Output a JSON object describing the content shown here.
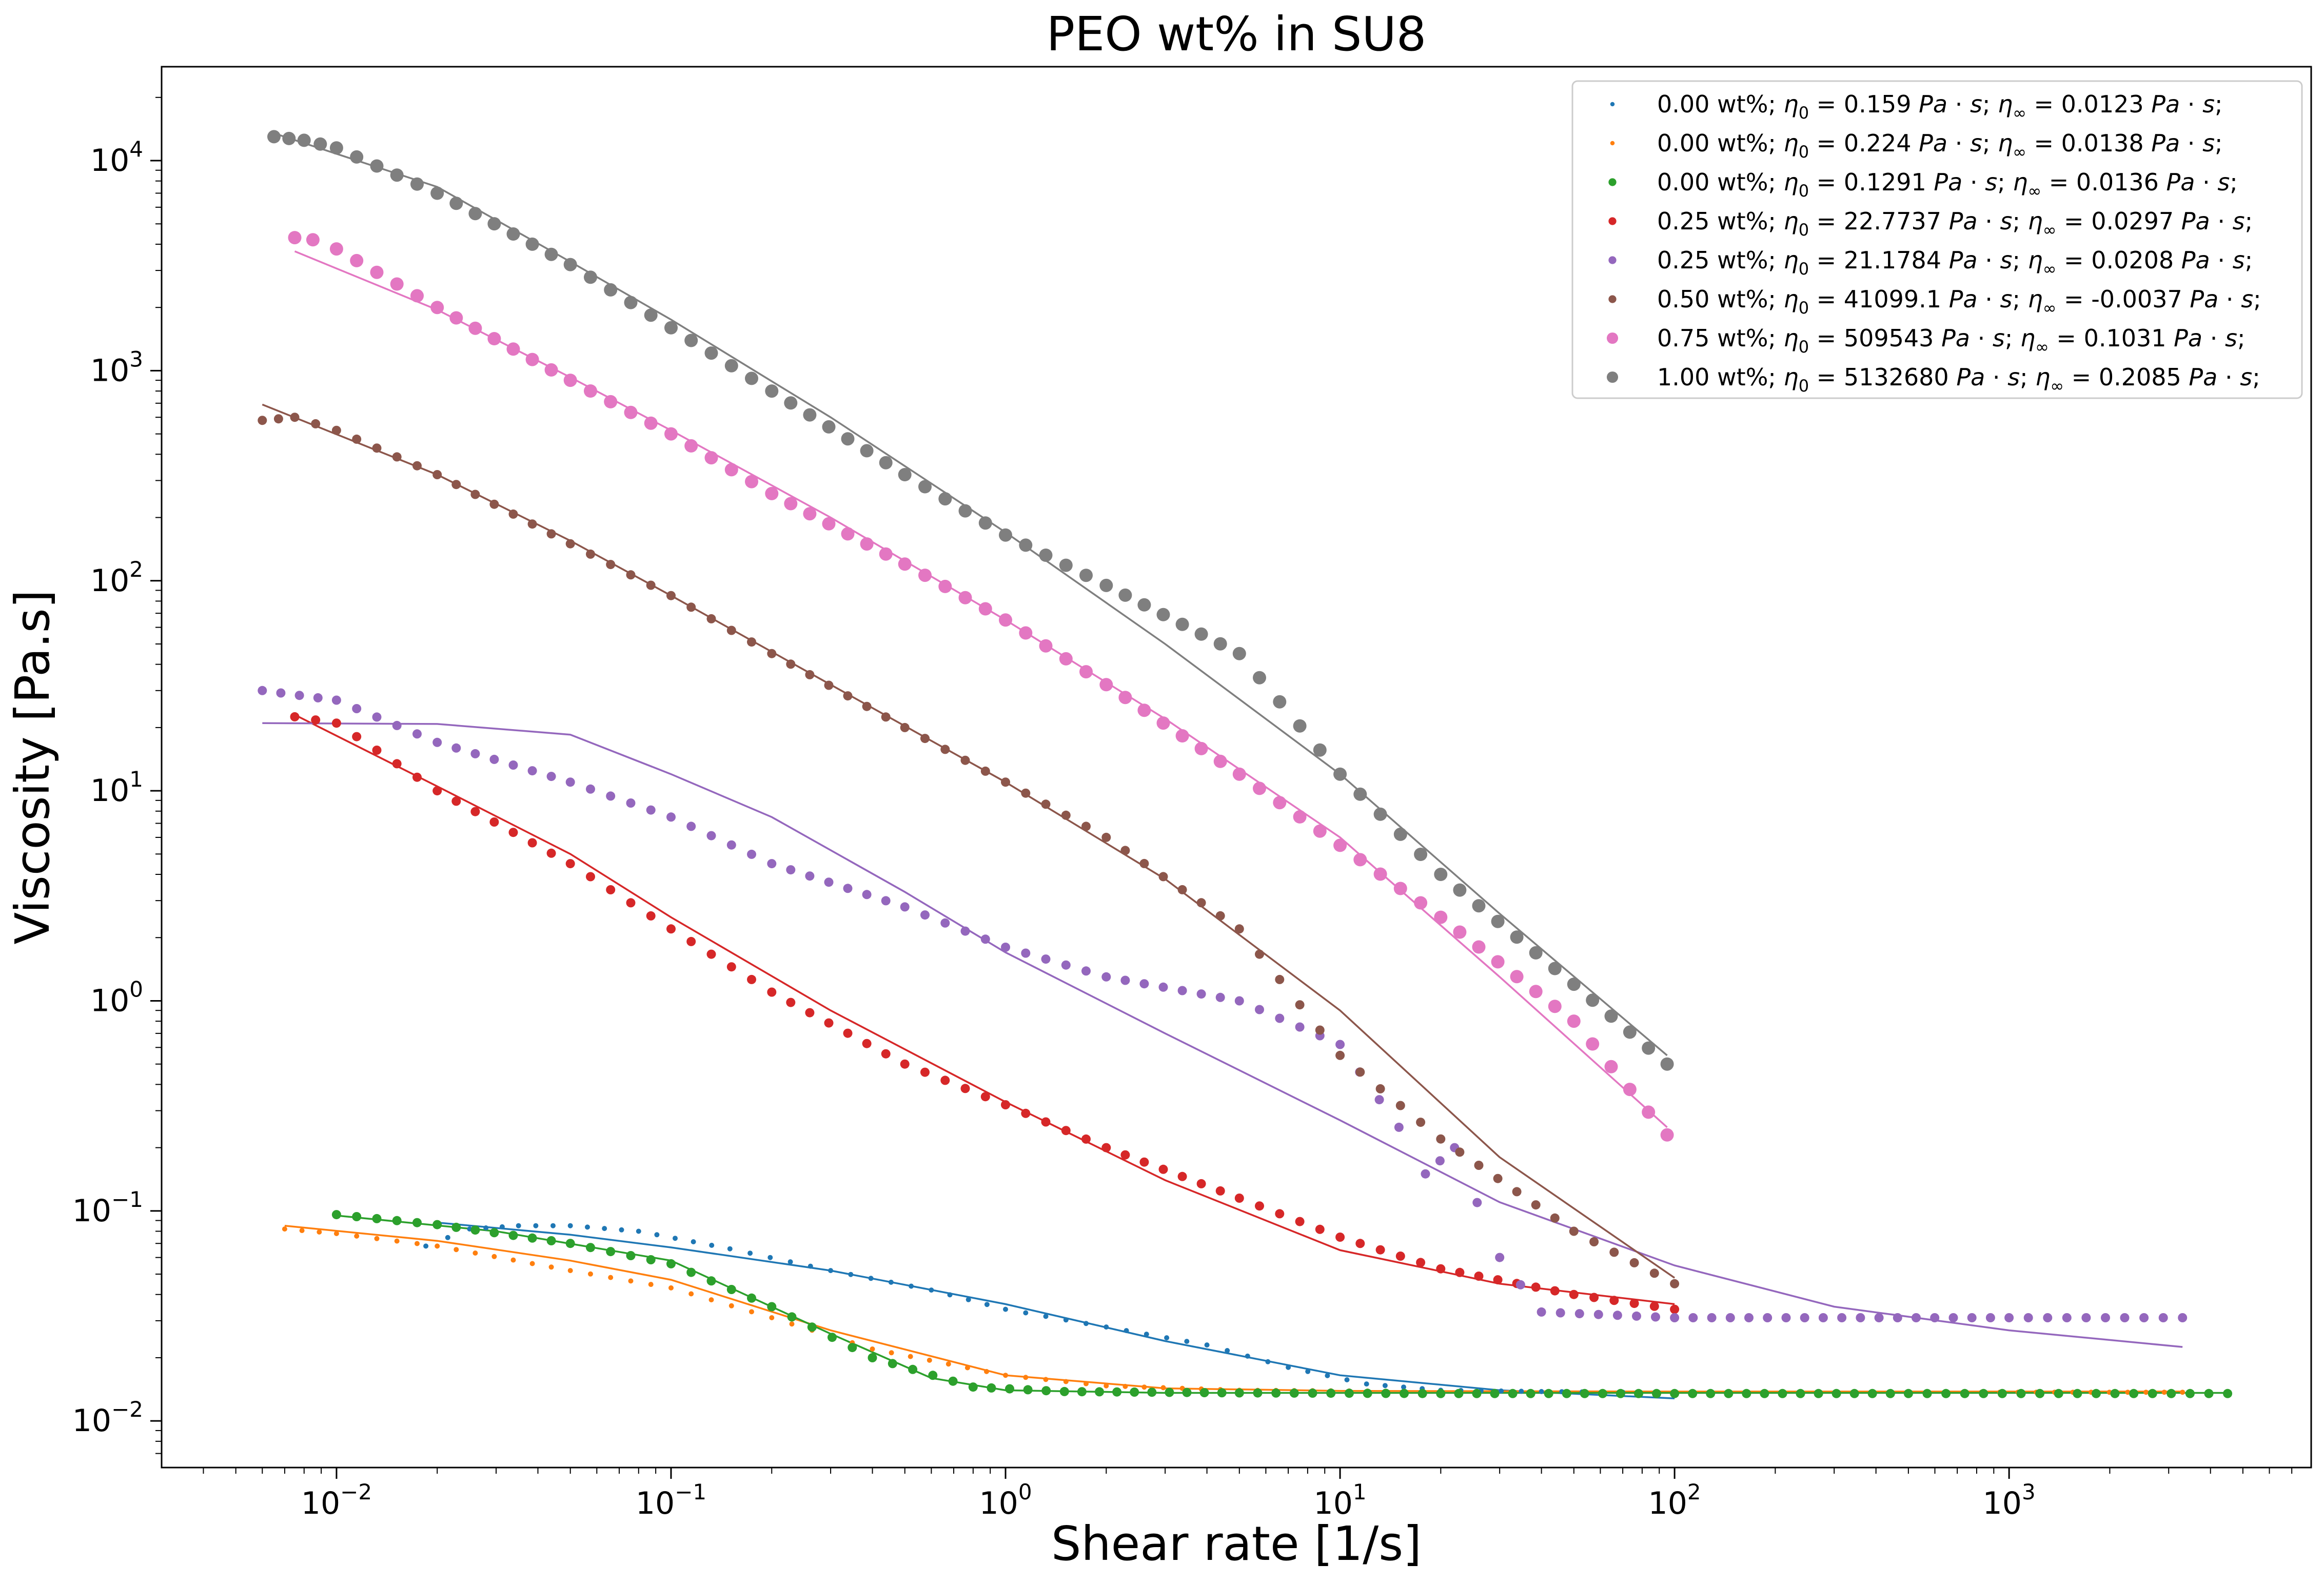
{
  "chart_data": {
    "type": "scatter",
    "title": "PEO wt% in SU8",
    "xlabel": "Shear rate [1/s]",
    "ylabel": "Viscosity [Pa.s]",
    "x_scale": "log",
    "y_scale": "log",
    "xlim": [
      0.003,
      8000
    ],
    "ylim": [
      0.006,
      28000
    ],
    "grid": false,
    "legend_position": "top-right",
    "x_ticks": [
      {
        "value": 0.01,
        "base": "10",
        "exp": "−2"
      },
      {
        "value": 0.1,
        "base": "10",
        "exp": "−1"
      },
      {
        "value": 1,
        "base": "10",
        "exp": "0"
      },
      {
        "value": 10,
        "base": "10",
        "exp": "1"
      },
      {
        "value": 100,
        "base": "10",
        "exp": "2"
      },
      {
        "value": 1000,
        "base": "10",
        "exp": "3"
      }
    ],
    "y_ticks": [
      {
        "value": 0.01,
        "base": "10",
        "exp": "−2"
      },
      {
        "value": 0.1,
        "base": "10",
        "exp": "−1"
      },
      {
        "value": 1,
        "base": "10",
        "exp": "0"
      },
      {
        "value": 10,
        "base": "10",
        "exp": "1"
      },
      {
        "value": 100,
        "base": "10",
        "exp": "2"
      },
      {
        "value": 1000,
        "base": "10",
        "exp": "3"
      },
      {
        "value": 10000,
        "base": "10",
        "exp": "4"
      }
    ],
    "series": [
      {
        "name": "0.00 wt%; η0 = 0.159 Pa·s; η∞ = 0.0123 Pa·s;",
        "label": {
          "wt": "0.00 wt%;",
          "eta0": "0.159",
          "etainf": "0.0123"
        },
        "color": "#1f77b4",
        "marker": "small",
        "points": [
          [
            0.0185,
            0.068
          ],
          [
            0.025,
            0.082
          ],
          [
            0.035,
            0.085
          ],
          [
            0.05,
            0.085
          ],
          [
            0.08,
            0.08
          ],
          [
            0.15,
            0.066
          ],
          [
            0.3,
            0.052
          ],
          [
            0.6,
            0.042
          ],
          [
            1.0,
            0.034
          ],
          [
            2.0,
            0.028
          ],
          [
            4.0,
            0.023
          ],
          [
            7.0,
            0.018
          ],
          [
            12.0,
            0.015
          ],
          [
            20.0,
            0.014
          ],
          [
            40.0,
            0.0138
          ],
          [
            70.0,
            0.0137
          ],
          [
            100.0,
            0.0137
          ]
        ],
        "fit": [
          [
            0.02,
            0.088
          ],
          [
            0.05,
            0.077
          ],
          [
            0.1,
            0.067
          ],
          [
            0.3,
            0.052
          ],
          [
            1.0,
            0.036
          ],
          [
            3.0,
            0.024
          ],
          [
            10.0,
            0.0165
          ],
          [
            30.0,
            0.014
          ],
          [
            100.0,
            0.0128
          ]
        ]
      },
      {
        "name": "0.00 wt%; η0 = 0.224 Pa·s; η∞ = 0.0138 Pa·s;",
        "label": {
          "wt": "0.00 wt%;",
          "eta0": "0.224",
          "etainf": "0.0138"
        },
        "color": "#ff7f0e",
        "marker": "small",
        "points": [
          [
            0.007,
            0.082
          ],
          [
            0.01,
            0.078
          ],
          [
            0.02,
            0.068
          ],
          [
            0.05,
            0.052
          ],
          [
            0.1,
            0.043
          ],
          [
            0.2,
            0.031
          ],
          [
            0.4,
            0.022
          ],
          [
            1.0,
            0.0165
          ],
          [
            2.0,
            0.0147
          ],
          [
            5.0,
            0.014
          ],
          [
            20.0,
            0.0138
          ],
          [
            100.0,
            0.0137
          ],
          [
            500.0,
            0.0137
          ],
          [
            3300.0,
            0.0137
          ]
        ],
        "fit": [
          [
            0.007,
            0.085
          ],
          [
            0.02,
            0.072
          ],
          [
            0.05,
            0.058
          ],
          [
            0.1,
            0.047
          ],
          [
            0.3,
            0.027
          ],
          [
            1.0,
            0.0165
          ],
          [
            3.0,
            0.0143
          ],
          [
            10.0,
            0.0139
          ],
          [
            100.0,
            0.0138
          ],
          [
            3300.0,
            0.0138
          ]
        ]
      },
      {
        "name": "0.00 wt%; η0 = 0.1291 Pa·s; η∞ = 0.0136 Pa·s;",
        "label": {
          "wt": "0.00 wt%;",
          "eta0": "0.1291",
          "etainf": "0.0136"
        },
        "color": "#2ca02c",
        "marker": "medium",
        "points": [
          [
            0.01,
            0.096
          ],
          [
            0.02,
            0.086
          ],
          [
            0.05,
            0.07
          ],
          [
            0.1,
            0.056
          ],
          [
            0.2,
            0.035
          ],
          [
            0.4,
            0.02
          ],
          [
            0.8,
            0.0145
          ],
          [
            1.5,
            0.0138
          ],
          [
            5.0,
            0.0136
          ],
          [
            20.0,
            0.0135
          ],
          [
            100.0,
            0.0135
          ],
          [
            500.0,
            0.0135
          ],
          [
            4500.0,
            0.0135
          ]
        ],
        "fit": [
          [
            0.01,
            0.095
          ],
          [
            0.03,
            0.08
          ],
          [
            0.1,
            0.058
          ],
          [
            0.3,
            0.026
          ],
          [
            0.6,
            0.016
          ],
          [
            1.0,
            0.014
          ],
          [
            3.0,
            0.0136
          ],
          [
            100.0,
            0.0136
          ],
          [
            4500.0,
            0.0136
          ]
        ]
      },
      {
        "name": "0.25 wt%; η0 = 22.7737 Pa·s; η∞ = 0.0297 Pa·s;",
        "label": {
          "wt": "0.25 wt%;",
          "eta0": "22.7737",
          "etainf": "0.0297"
        },
        "color": "#d62728",
        "marker": "medium",
        "points": [
          [
            0.0075,
            22.5
          ],
          [
            0.01,
            21.0
          ],
          [
            0.02,
            10.0
          ],
          [
            0.05,
            4.5
          ],
          [
            0.1,
            2.2
          ],
          [
            0.2,
            1.1
          ],
          [
            0.5,
            0.5
          ],
          [
            1.0,
            0.32
          ],
          [
            2.0,
            0.2
          ],
          [
            5.0,
            0.115
          ],
          [
            10.0,
            0.075
          ],
          [
            20.0,
            0.053
          ],
          [
            50.0,
            0.04
          ],
          [
            100.0,
            0.034
          ]
        ],
        "fit": [
          [
            0.0075,
            23.0
          ],
          [
            0.02,
            10.5
          ],
          [
            0.05,
            5.0
          ],
          [
            0.1,
            2.5
          ],
          [
            0.3,
            0.9
          ],
          [
            1.0,
            0.33
          ],
          [
            3.0,
            0.14
          ],
          [
            10.0,
            0.065
          ],
          [
            30.0,
            0.045
          ],
          [
            100.0,
            0.036
          ]
        ]
      },
      {
        "name": "0.25 wt%; η0 = 21.1784 Pa·s; η∞ = 0.0208 Pa·s;",
        "label": {
          "wt": "0.25 wt%;",
          "eta0": "21.1784",
          "etainf": "0.0208"
        },
        "color": "#9467bd",
        "marker": "medium",
        "points": [
          [
            0.006,
            30.0
          ],
          [
            0.01,
            27.0
          ],
          [
            0.02,
            17.0
          ],
          [
            0.05,
            11.0
          ],
          [
            0.1,
            7.5
          ],
          [
            0.2,
            4.5
          ],
          [
            0.5,
            2.8
          ],
          [
            1.0,
            1.8
          ],
          [
            2.0,
            1.3
          ],
          [
            5.0,
            1.0
          ],
          [
            10.0,
            0.62
          ],
          [
            15.0,
            0.25
          ],
          [
            18.0,
            0.15
          ],
          [
            22.0,
            0.2
          ],
          [
            30.0,
            0.06
          ],
          [
            40.0,
            0.033
          ],
          [
            100.0,
            0.031
          ],
          [
            1000.0,
            0.031
          ],
          [
            3300.0,
            0.031
          ]
        ],
        "fit": [
          [
            0.006,
            21.0
          ],
          [
            0.02,
            20.8
          ],
          [
            0.05,
            18.5
          ],
          [
            0.1,
            12.0
          ],
          [
            0.2,
            7.5
          ],
          [
            0.5,
            3.3
          ],
          [
            1.0,
            1.7
          ],
          [
            3.0,
            0.7
          ],
          [
            10.0,
            0.27
          ],
          [
            30.0,
            0.11
          ],
          [
            100.0,
            0.055
          ],
          [
            300.0,
            0.035
          ],
          [
            1000.0,
            0.027
          ],
          [
            3300.0,
            0.0225
          ]
        ]
      },
      {
        "name": "0.50 wt%; η0 = 41099.1 Pa·s; η∞ = -0.0037 Pa·s;",
        "label": {
          "wt": "0.50 wt%;",
          "eta0": "41099.1",
          "etainf": "-0.0037"
        },
        "color": "#8c564b",
        "marker": "medium",
        "points": [
          [
            0.006,
            580.0
          ],
          [
            0.0075,
            600.0
          ],
          [
            0.01,
            520.0
          ],
          [
            0.02,
            320.0
          ],
          [
            0.05,
            150.0
          ],
          [
            0.1,
            85.0
          ],
          [
            0.2,
            45.0
          ],
          [
            0.5,
            20.0
          ],
          [
            1.0,
            11.0
          ],
          [
            2.0,
            6.0
          ],
          [
            5.0,
            2.2
          ],
          [
            10.0,
            0.55
          ],
          [
            20.0,
            0.22
          ],
          [
            50.0,
            0.08
          ],
          [
            100.0,
            0.045
          ]
        ],
        "fit": [
          [
            0.006,
            690.0
          ],
          [
            0.02,
            320.0
          ],
          [
            0.05,
            155.0
          ],
          [
            0.1,
            85.0
          ],
          [
            0.3,
            32.0
          ],
          [
            1.0,
            11.0
          ],
          [
            3.0,
            3.8
          ],
          [
            10.0,
            0.9
          ],
          [
            30.0,
            0.18
          ],
          [
            100.0,
            0.048
          ]
        ]
      },
      {
        "name": "0.75 wt%; η0 = 509543 Pa·s; η∞ = 0.1031 Pa·s;",
        "label": {
          "wt": "0.75 wt%;",
          "eta0": "509543",
          "etainf": "0.1031"
        },
        "color": "#e377c2",
        "marker": "large",
        "points": [
          [
            0.0075,
            4300.0
          ],
          [
            0.0085,
            4200.0
          ],
          [
            0.01,
            3800.0
          ],
          [
            0.02,
            2000.0
          ],
          [
            0.05,
            900.0
          ],
          [
            0.1,
            500.0
          ],
          [
            0.2,
            260.0
          ],
          [
            0.5,
            120.0
          ],
          [
            1.0,
            65.0
          ],
          [
            2.0,
            32.0
          ],
          [
            5.0,
            12.0
          ],
          [
            10.0,
            5.5
          ],
          [
            20.0,
            2.5
          ],
          [
            50.0,
            0.8
          ],
          [
            95.0,
            0.23
          ]
        ],
        "fit": [
          [
            0.0075,
            3700.0
          ],
          [
            0.02,
            1950.0
          ],
          [
            0.05,
            930.0
          ],
          [
            0.1,
            520.0
          ],
          [
            0.3,
            200.0
          ],
          [
            1.0,
            65.0
          ],
          [
            3.0,
            22.0
          ],
          [
            10.0,
            6.0
          ],
          [
            30.0,
            1.3
          ],
          [
            95.0,
            0.25
          ]
        ]
      },
      {
        "name": "1.00 wt%; η0 = 5132680 Pa·s; η∞ = 0.2085 Pa·s;",
        "label": {
          "wt": "1.00 wt%;",
          "eta0": "5132680",
          "etainf": "0.2085"
        },
        "color": "#7f7f7f",
        "marker": "large",
        "points": [
          [
            0.0065,
            13000.0
          ],
          [
            0.008,
            12500.0
          ],
          [
            0.01,
            11500.0
          ],
          [
            0.02,
            7000.0
          ],
          [
            0.05,
            3200.0
          ],
          [
            0.1,
            1600.0
          ],
          [
            0.2,
            800.0
          ],
          [
            0.5,
            320.0
          ],
          [
            1.0,
            165.0
          ],
          [
            2.0,
            95.0
          ],
          [
            5.0,
            45.0
          ],
          [
            10.0,
            12.0
          ],
          [
            20.0,
            4.0
          ],
          [
            50.0,
            1.2
          ],
          [
            95.0,
            0.5
          ]
        ],
        "fit": [
          [
            0.0065,
            13500.0
          ],
          [
            0.02,
            7500.0
          ],
          [
            0.05,
            3300.0
          ],
          [
            0.1,
            1750.0
          ],
          [
            0.3,
            600.0
          ],
          [
            1.0,
            170.0
          ],
          [
            3.0,
            50.0
          ],
          [
            10.0,
            12.0
          ],
          [
            30.0,
            2.6
          ],
          [
            95.0,
            0.55
          ]
        ]
      }
    ]
  }
}
